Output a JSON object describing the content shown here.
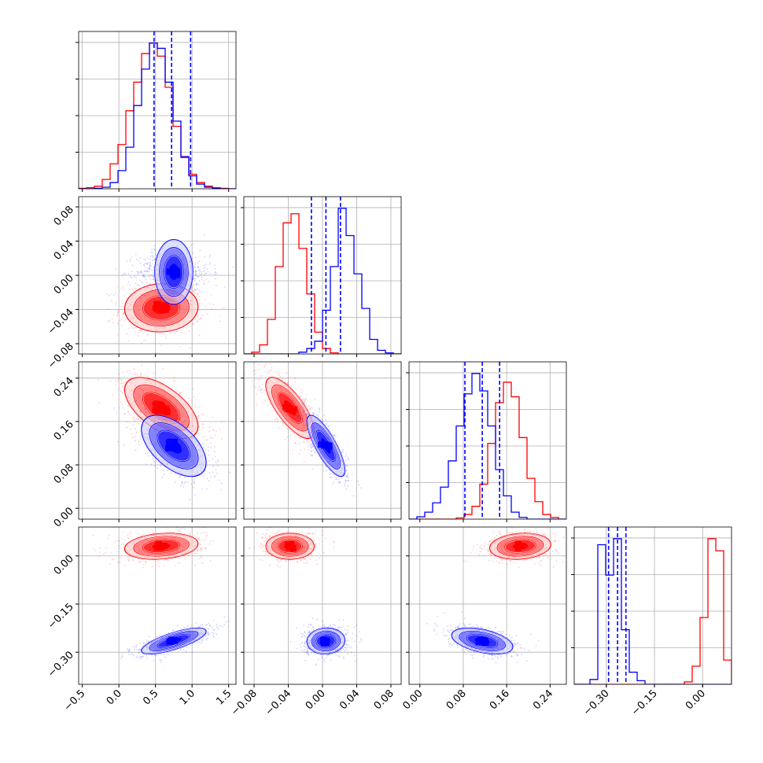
{
  "colors": {
    "red": "#ff0000",
    "blue": "#0000ff",
    "grid": "#b0b0b0"
  },
  "chart_data": {
    "type": "corner",
    "parameters": [
      {
        "range": [
          -0.55,
          1.6
        ],
        "ticks": [
          -0.5,
          0.0,
          0.5,
          1.0,
          1.5
        ],
        "tick_labels": [
          "−0.5",
          "0.0",
          "0.5",
          "1.0",
          "1.5"
        ]
      },
      {
        "range": [
          -0.092,
          0.092
        ],
        "ticks": [
          -0.08,
          -0.04,
          0.0,
          0.04,
          0.08
        ],
        "tick_labels": [
          "−0.08",
          "−0.04",
          "0.00",
          "0.04",
          "0.08"
        ]
      },
      {
        "range": [
          -0.02,
          0.27
        ],
        "ticks": [
          0.0,
          0.08,
          0.16,
          0.24
        ],
        "tick_labels": [
          "0.00",
          "0.08",
          "0.16",
          "0.24"
        ]
      },
      {
        "range": [
          -0.4,
          0.09
        ],
        "ticks": [
          -0.3,
          -0.15,
          0.0
        ],
        "tick_labels": [
          "−0.30",
          "−0.15",
          "0.00"
        ]
      }
    ],
    "diag_tick_count": 4,
    "series": [
      {
        "color": "red",
        "means": [
          0.58,
          -0.038,
          0.185,
          0.03
        ],
        "sds": [
          0.25,
          0.014,
          0.028,
          0.02
        ]
      },
      {
        "color": "blue",
        "means": [
          0.75,
          0.004,
          0.115,
          -0.265
        ],
        "sds": [
          0.22,
          0.011,
          0.028,
          0.02
        ]
      }
    ],
    "correlations": {
      "red": [
        [
          1,
          0.05,
          -0.6,
          0.2
        ],
        [
          0.05,
          1,
          -0.75,
          0.0
        ],
        [
          -0.6,
          -0.75,
          1,
          0.15
        ],
        [
          0.2,
          0.0,
          0.15,
          1
        ]
      ],
      "blue": [
        [
          1,
          0.0,
          -0.55,
          0.75
        ],
        [
          0.0,
          1,
          -0.8,
          0.05
        ],
        [
          -0.55,
          -0.8,
          1,
          -0.45
        ],
        [
          0.75,
          0.05,
          -0.45,
          1
        ]
      ]
    },
    "quantile_lines": {
      "color": "blue",
      "values": [
        [
          0.48,
          0.72,
          0.98
        ],
        [
          -0.013,
          0.004,
          0.021
        ],
        [
          0.083,
          0.115,
          0.147
        ],
        [
          -0.293,
          -0.265,
          -0.239
        ]
      ]
    },
    "histograms": {
      "red": [
        [
          1,
          2,
          5,
          18,
          48,
          85,
          150,
          205,
          260,
          280,
          255,
          195,
          120,
          60,
          28,
          12,
          5,
          2,
          1,
          0
        ],
        [
          0,
          5,
          25,
          95,
          240,
          360,
          385,
          290,
          165,
          60,
          15,
          3,
          0,
          0,
          0,
          0,
          0,
          0,
          0,
          0
        ],
        [
          0,
          0,
          0,
          0,
          0,
          0,
          2,
          8,
          22,
          60,
          130,
          200,
          235,
          210,
          140,
          70,
          30,
          8,
          3,
          0
        ],
        [
          0,
          0,
          0,
          0,
          0,
          0,
          0,
          0,
          0,
          0,
          0,
          0,
          0,
          0,
          2,
          15,
          55,
          120,
          110,
          20
        ]
      ],
      "blue": [
        [
          0,
          0,
          1,
          3,
          12,
          35,
          80,
          160,
          230,
          280,
          270,
          205,
          130,
          62,
          25,
          9,
          3,
          1,
          0,
          0
        ],
        [
          0,
          0,
          0,
          0,
          0,
          0,
          0,
          5,
          15,
          35,
          120,
          240,
          400,
          325,
          220,
          125,
          40,
          10,
          3,
          0
        ],
        [
          0,
          4,
          12,
          28,
          55,
          100,
          160,
          215,
          250,
          220,
          160,
          85,
          40,
          12,
          3,
          0,
          0,
          0,
          0,
          0
        ],
        [
          0,
          0,
          4,
          115,
          90,
          120,
          45,
          10,
          3,
          0,
          0,
          0,
          0,
          0,
          0,
          0,
          0,
          0,
          0,
          0
        ]
      ]
    },
    "grid": true
  }
}
